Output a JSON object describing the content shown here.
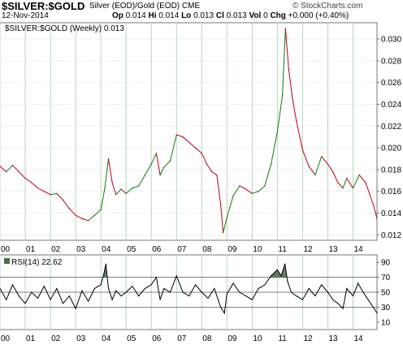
{
  "header": {
    "title": "$SILVER:$GOLD",
    "subtitle": "Silver (EOD)/Gold (EOD) CME",
    "date": "12-Nov-2014",
    "watermark": "© StockCharts.com",
    "open_label": "Op",
    "open": "0.014",
    "high_label": "Hi",
    "high": "0.014",
    "low_label": "Lo",
    "low": "0.013",
    "close_label": "Cl",
    "close": "0.013",
    "volume_label": "Vol",
    "volume": "0",
    "change_label": "Chg",
    "change": "+0.000 (+0.40%)"
  },
  "chart_data": [
    {
      "type": "line",
      "legend": "$SILVER:$GOLD (Weekly) 0.013",
      "legend_placement": "top-left",
      "x_tick_labels": [
        "00",
        "01",
        "02",
        "03",
        "04",
        "05",
        "06",
        "07",
        "08",
        "09",
        "10",
        "11",
        "12",
        "13",
        "14"
      ],
      "x_range": [
        2000.0,
        2014.95
      ],
      "y_tick_labels": [
        "0.012",
        "0.014",
        "0.016",
        "0.018",
        "0.020",
        "0.022",
        "0.024",
        "0.026",
        "0.028",
        "0.030"
      ],
      "y_range": [
        0.0115,
        0.0315
      ],
      "grid": true,
      "colors": {
        "up": "#1f8a1f",
        "down": "#c8102e",
        "grid": "#b8d8b8"
      },
      "x": [
        2000.0,
        2000.25,
        2000.5,
        2000.75,
        2001.0,
        2001.25,
        2001.5,
        2001.75,
        2002.0,
        2002.25,
        2002.5,
        2002.75,
        2003.0,
        2003.25,
        2003.5,
        2003.75,
        2004.0,
        2004.15,
        2004.3,
        2004.45,
        2004.6,
        2004.8,
        2005.0,
        2005.25,
        2005.5,
        2005.75,
        2006.0,
        2006.2,
        2006.35,
        2006.5,
        2006.75,
        2007.0,
        2007.25,
        2007.5,
        2007.75,
        2008.0,
        2008.2,
        2008.4,
        2008.6,
        2008.75,
        2008.85,
        2009.0,
        2009.25,
        2009.5,
        2009.75,
        2010.0,
        2010.25,
        2010.5,
        2010.75,
        2011.0,
        2011.2,
        2011.32,
        2011.45,
        2011.6,
        2011.75,
        2012.0,
        2012.25,
        2012.5,
        2012.75,
        2013.0,
        2013.2,
        2013.4,
        2013.6,
        2013.75,
        2014.0,
        2014.25,
        2014.5,
        2014.65,
        2014.8,
        2014.95
      ],
      "y": [
        0.0183,
        0.0178,
        0.0184,
        0.0178,
        0.0172,
        0.0168,
        0.0163,
        0.016,
        0.0157,
        0.0158,
        0.0152,
        0.0144,
        0.0138,
        0.0135,
        0.0133,
        0.0138,
        0.0143,
        0.0162,
        0.019,
        0.0168,
        0.0157,
        0.0162,
        0.0158,
        0.0163,
        0.0165,
        0.0175,
        0.0185,
        0.0195,
        0.0175,
        0.0182,
        0.0188,
        0.0212,
        0.021,
        0.0205,
        0.02,
        0.0195,
        0.0185,
        0.0178,
        0.0175,
        0.0148,
        0.0122,
        0.0136,
        0.0156,
        0.0165,
        0.0162,
        0.0158,
        0.016,
        0.0165,
        0.0185,
        0.0215,
        0.0248,
        0.031,
        0.0272,
        0.0245,
        0.0225,
        0.0198,
        0.0183,
        0.0175,
        0.0192,
        0.0185,
        0.0178,
        0.0168,
        0.0163,
        0.0172,
        0.0163,
        0.0175,
        0.0168,
        0.0158,
        0.0148,
        0.0135
      ]
    },
    {
      "type": "line",
      "legend": "RSI(14) 22.62",
      "legend_placement": "top-left",
      "x_tick_labels": [
        "00",
        "01",
        "02",
        "03",
        "04",
        "05",
        "06",
        "07",
        "08",
        "09",
        "10",
        "11",
        "12",
        "13",
        "14"
      ],
      "x_range": [
        2000.0,
        2014.95
      ],
      "y_tick_labels": [
        "10",
        "30",
        "50",
        "70",
        "90"
      ],
      "y_range": [
        0,
        100
      ],
      "reference_lines": [
        30,
        50,
        70
      ],
      "fill_color": "#4d6b4d",
      "x": [
        2000.0,
        2000.25,
        2000.5,
        2000.75,
        2001.0,
        2001.25,
        2001.5,
        2001.75,
        2002.0,
        2002.25,
        2002.5,
        2002.75,
        2003.0,
        2003.25,
        2003.5,
        2003.75,
        2004.0,
        2004.12,
        2004.2,
        2004.3,
        2004.45,
        2004.6,
        2004.8,
        2005.0,
        2005.25,
        2005.5,
        2005.75,
        2006.0,
        2006.2,
        2006.35,
        2006.5,
        2006.75,
        2007.0,
        2007.25,
        2007.5,
        2007.75,
        2008.0,
        2008.25,
        2008.5,
        2008.75,
        2008.9,
        2009.0,
        2009.25,
        2009.5,
        2009.75,
        2010.0,
        2010.25,
        2010.5,
        2010.75,
        2011.0,
        2011.15,
        2011.3,
        2011.4,
        2011.55,
        2011.75,
        2012.0,
        2012.25,
        2012.5,
        2012.75,
        2013.0,
        2013.2,
        2013.4,
        2013.6,
        2013.75,
        2014.0,
        2014.2,
        2014.4,
        2014.6,
        2014.8,
        2014.95
      ],
      "y": [
        55,
        40,
        60,
        45,
        35,
        50,
        42,
        58,
        40,
        55,
        35,
        45,
        28,
        52,
        38,
        55,
        60,
        75,
        88,
        55,
        40,
        52,
        45,
        50,
        58,
        45,
        55,
        60,
        70,
        40,
        55,
        50,
        72,
        50,
        45,
        60,
        50,
        42,
        55,
        30,
        22,
        48,
        62,
        50,
        45,
        40,
        55,
        60,
        72,
        80,
        72,
        88,
        65,
        50,
        45,
        40,
        55,
        45,
        60,
        50,
        40,
        35,
        28,
        55,
        45,
        62,
        50,
        40,
        30,
        22
      ]
    }
  ]
}
